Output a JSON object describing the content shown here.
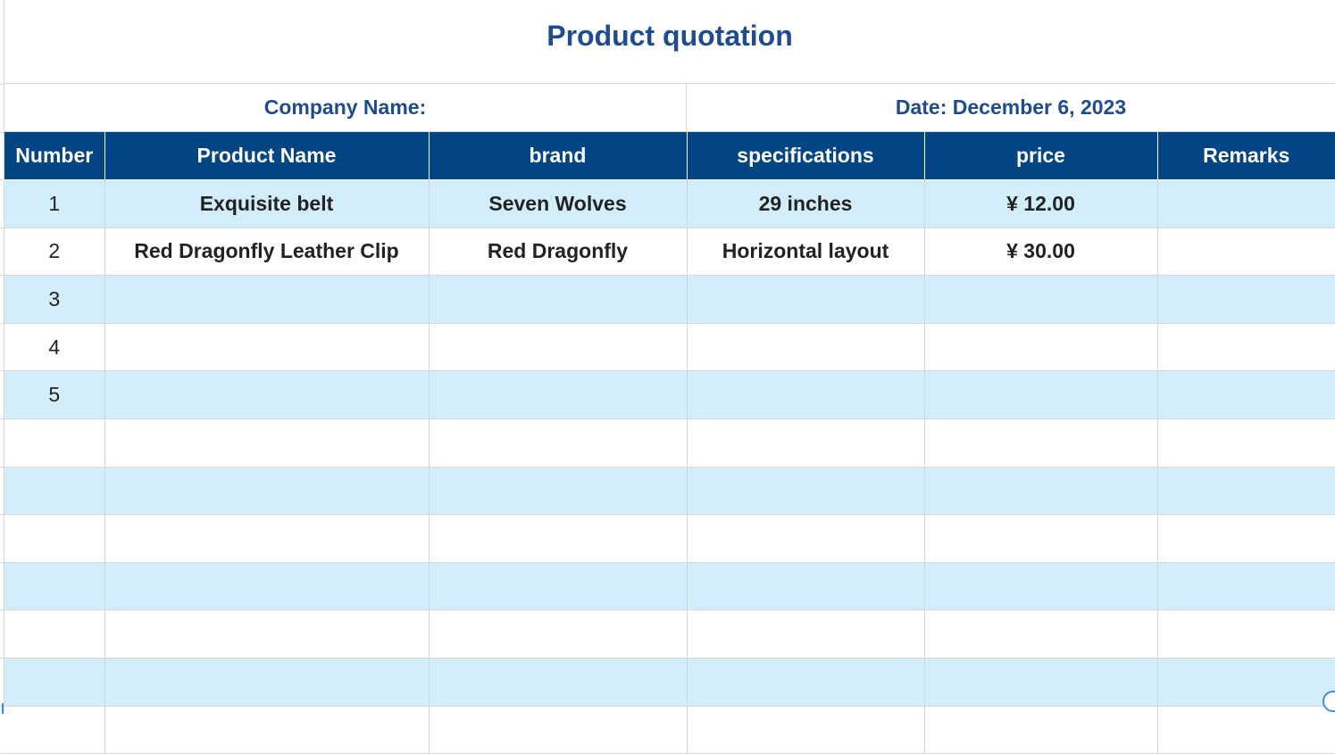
{
  "sheet": {
    "title": "Product quotation",
    "company_label": "Company Name:",
    "date_label": "Date: December 6, 2023"
  },
  "table": {
    "headers": [
      "Number",
      "Product Name",
      "brand",
      "specifications",
      "price",
      "Remarks"
    ],
    "rows": [
      [
        "1",
        "Exquisite belt",
        "Seven Wolves",
        "29 inches",
        "¥ 12.00",
        ""
      ],
      [
        "2",
        "Red Dragonfly Leather Clip",
        "Red Dragonfly",
        "Horizontal layout",
        "¥ 30.00",
        ""
      ],
      [
        "3",
        "",
        "",
        "",
        "",
        ""
      ],
      [
        "4",
        "",
        "",
        "",
        "",
        ""
      ],
      [
        "5",
        "",
        "",
        "",
        "",
        ""
      ],
      [
        "",
        "",
        "",
        "",
        "",
        ""
      ],
      [
        "",
        "",
        "",
        "",
        "",
        ""
      ],
      [
        "",
        "",
        "",
        "",
        "",
        ""
      ],
      [
        "",
        "",
        "",
        "",
        "",
        ""
      ],
      [
        "",
        "",
        "",
        "",
        "",
        ""
      ],
      [
        "",
        "",
        "",
        "",
        "",
        ""
      ],
      [
        "",
        "",
        "",
        "",
        "",
        ""
      ]
    ]
  },
  "colors": {
    "title_text": "#1f4b8f",
    "header_bg": "#034483",
    "header_text": "#ffffff",
    "band_row": "#d2eefb",
    "grid_line": "#d6d6d6"
  }
}
